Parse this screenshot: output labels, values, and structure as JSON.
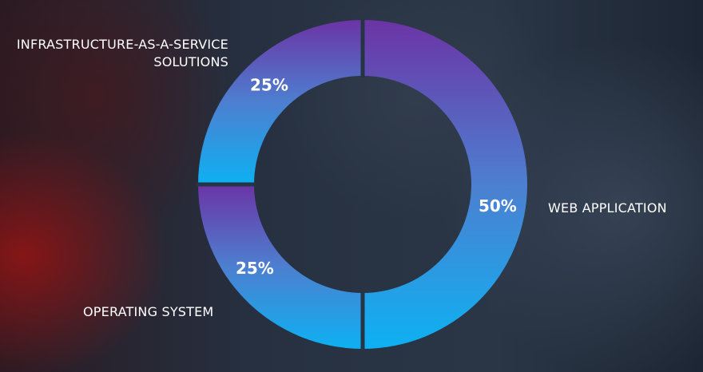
{
  "chart_data": {
    "type": "pie",
    "donut": true,
    "categories": [
      "WEB APPLICATION",
      "OPERATING SYSTEM",
      "INFRASTRUCTURE-AS-A-SERVICE SOLUTIONS"
    ],
    "values": [
      50,
      25,
      25
    ],
    "value_labels": [
      "50%",
      "25%",
      "25%"
    ],
    "legend": "none",
    "colors": {
      "top": "#6b34a5",
      "bottom": "#0db1f2",
      "divider": "#253545"
    },
    "label_lines": {
      "iaas": [
        "INFRASTRUCTURE-AS-A-SERVICE",
        "SOLUTIONS"
      ],
      "web": "WEB APPLICATION",
      "os": "OPERATING SYSTEM"
    }
  }
}
